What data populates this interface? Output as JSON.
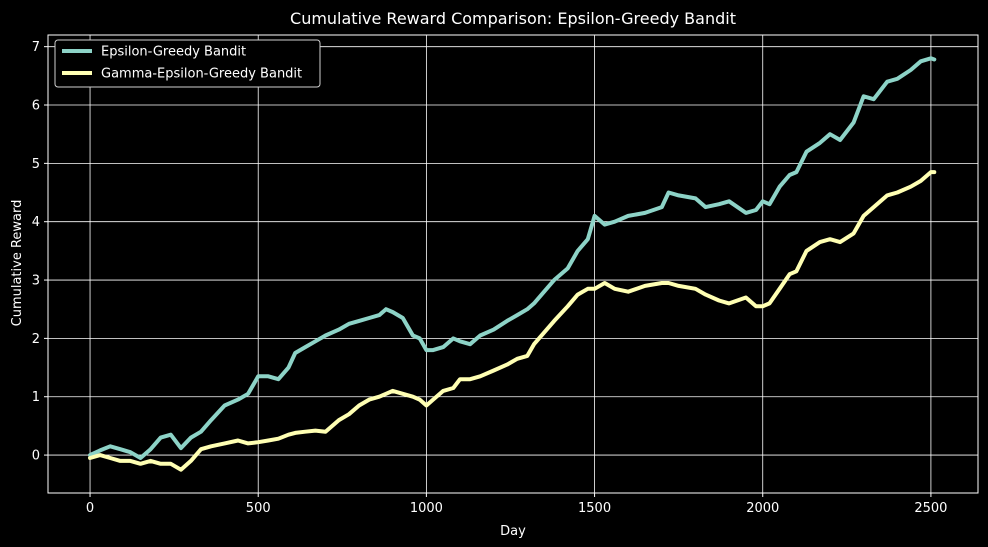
{
  "chart_data": {
    "type": "line",
    "title": "Cumulative Reward Comparison: Epsilon-Greedy Bandit",
    "xlabel": "Day",
    "ylabel": "Cumulative Reward",
    "xlim": [
      -125,
      2640
    ],
    "ylim": [
      -0.65,
      7.2
    ],
    "xticks": [
      0,
      500,
      1000,
      1500,
      2000,
      2500
    ],
    "yticks": [
      0,
      1,
      2,
      3,
      4,
      5,
      6,
      7
    ],
    "grid": true,
    "legend_position": "top-left",
    "series": [
      {
        "name": "Epsilon-Greedy Bandit",
        "color": "#8dd3c7",
        "x": [
          0,
          30,
          60,
          90,
          120,
          150,
          180,
          210,
          240,
          270,
          300,
          330,
          360,
          400,
          440,
          470,
          500,
          530,
          560,
          590,
          610,
          640,
          670,
          700,
          740,
          770,
          800,
          830,
          860,
          880,
          900,
          930,
          960,
          980,
          1000,
          1020,
          1050,
          1080,
          1100,
          1130,
          1160,
          1200,
          1240,
          1270,
          1300,
          1320,
          1350,
          1380,
          1420,
          1450,
          1480,
          1500,
          1530,
          1560,
          1600,
          1650,
          1700,
          1720,
          1750,
          1800,
          1830,
          1870,
          1900,
          1950,
          1980,
          2000,
          2020,
          2050,
          2080,
          2100,
          2130,
          2170,
          2200,
          2230,
          2270,
          2300,
          2330,
          2370,
          2400,
          2440,
          2470,
          2500,
          2510
        ],
        "y": [
          0.0,
          0.08,
          0.15,
          0.1,
          0.05,
          -0.05,
          0.1,
          0.3,
          0.35,
          0.12,
          0.3,
          0.4,
          0.6,
          0.85,
          0.95,
          1.05,
          1.35,
          1.35,
          1.3,
          1.5,
          1.75,
          1.85,
          1.95,
          2.05,
          2.15,
          2.25,
          2.3,
          2.35,
          2.4,
          2.5,
          2.45,
          2.35,
          2.05,
          2.0,
          1.8,
          1.8,
          1.85,
          2.0,
          1.95,
          1.9,
          2.05,
          2.15,
          2.3,
          2.4,
          2.5,
          2.6,
          2.8,
          3.0,
          3.2,
          3.5,
          3.7,
          4.1,
          3.95,
          4.0,
          4.1,
          4.15,
          4.25,
          4.5,
          4.45,
          4.4,
          4.25,
          4.3,
          4.35,
          4.15,
          4.2,
          4.35,
          4.3,
          4.6,
          4.8,
          4.85,
          5.2,
          5.35,
          5.5,
          5.4,
          5.7,
          6.15,
          6.1,
          6.4,
          6.45,
          6.6,
          6.75,
          6.8,
          6.78
        ]
      },
      {
        "name": "Gamma-Epsilon-Greedy Bandit",
        "color": "#ffffb3",
        "x": [
          0,
          30,
          60,
          90,
          120,
          150,
          180,
          210,
          240,
          270,
          300,
          330,
          360,
          400,
          440,
          470,
          500,
          530,
          560,
          590,
          610,
          640,
          670,
          700,
          740,
          770,
          800,
          830,
          860,
          880,
          900,
          930,
          960,
          980,
          1000,
          1020,
          1050,
          1080,
          1100,
          1130,
          1160,
          1200,
          1240,
          1270,
          1300,
          1320,
          1350,
          1380,
          1420,
          1450,
          1480,
          1500,
          1530,
          1560,
          1600,
          1650,
          1700,
          1720,
          1750,
          1800,
          1830,
          1870,
          1900,
          1950,
          1980,
          2000,
          2020,
          2050,
          2080,
          2100,
          2130,
          2170,
          2200,
          2230,
          2270,
          2300,
          2330,
          2370,
          2400,
          2440,
          2470,
          2500,
          2510
        ],
        "y": [
          -0.05,
          0.0,
          -0.05,
          -0.1,
          -0.1,
          -0.15,
          -0.1,
          -0.15,
          -0.15,
          -0.25,
          -0.1,
          0.1,
          0.15,
          0.2,
          0.25,
          0.2,
          0.22,
          0.25,
          0.28,
          0.35,
          0.38,
          0.4,
          0.42,
          0.4,
          0.6,
          0.7,
          0.85,
          0.95,
          1.0,
          1.05,
          1.1,
          1.05,
          1.0,
          0.95,
          0.85,
          0.95,
          1.1,
          1.15,
          1.3,
          1.3,
          1.35,
          1.45,
          1.55,
          1.65,
          1.7,
          1.9,
          2.1,
          2.3,
          2.55,
          2.75,
          2.85,
          2.85,
          2.95,
          2.85,
          2.8,
          2.9,
          2.95,
          2.95,
          2.9,
          2.85,
          2.75,
          2.65,
          2.6,
          2.7,
          2.55,
          2.55,
          2.6,
          2.85,
          3.1,
          3.15,
          3.5,
          3.65,
          3.7,
          3.65,
          3.8,
          4.1,
          4.25,
          4.45,
          4.5,
          4.6,
          4.7,
          4.85,
          4.85
        ]
      }
    ]
  }
}
